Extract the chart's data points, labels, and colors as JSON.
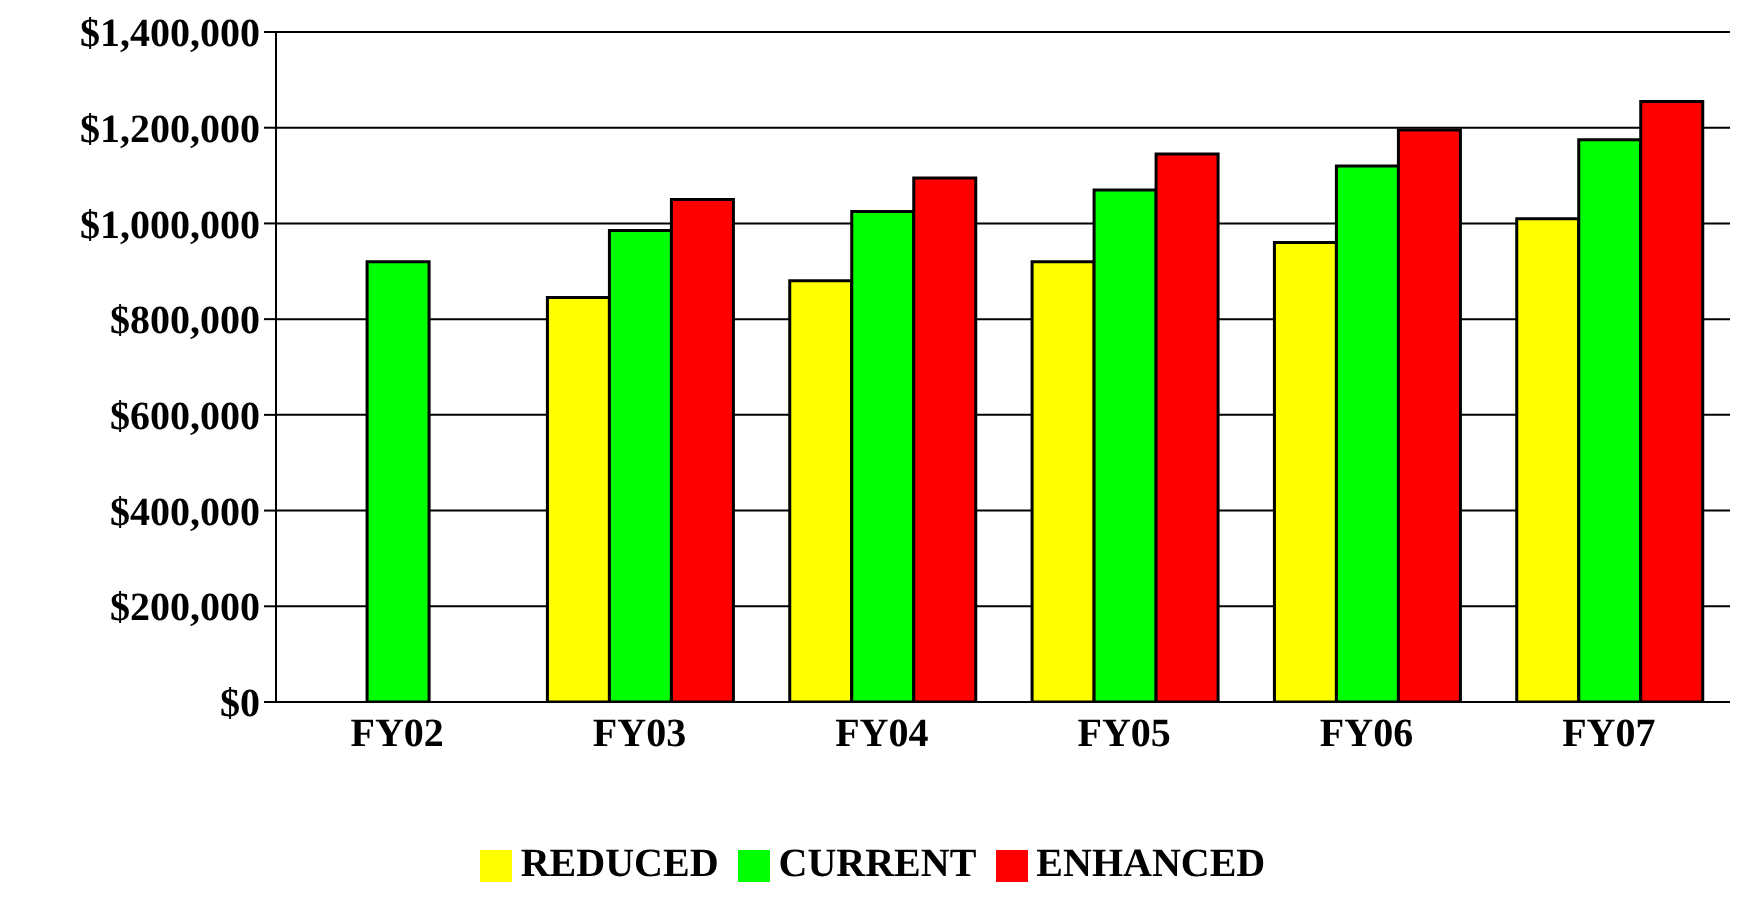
{
  "chart_data": {
    "type": "bar",
    "categories": [
      "FY02",
      "FY03",
      "FY04",
      "FY05",
      "FY06",
      "FY07"
    ],
    "series": [
      {
        "name": "REDUCED",
        "color": "#ffff00",
        "values": [
          null,
          845000,
          880000,
          920000,
          960000,
          1010000
        ]
      },
      {
        "name": "CURRENT",
        "color": "#00ff00",
        "values": [
          920000,
          985000,
          1025000,
          1070000,
          1120000,
          1175000
        ]
      },
      {
        "name": "ENHANCED",
        "color": "#ff0000",
        "values": [
          null,
          1050000,
          1095000,
          1145000,
          1195000,
          1255000
        ]
      }
    ],
    "ylim": [
      0,
      1400000
    ],
    "yticks": [
      {
        "value": 0,
        "label": "$0"
      },
      {
        "value": 200000,
        "label": "$200,000"
      },
      {
        "value": 400000,
        "label": "$400,000"
      },
      {
        "value": 600000,
        "label": "$600,000"
      },
      {
        "value": 800000,
        "label": "$800,000"
      },
      {
        "value": 1000000,
        "label": "$1,000,000"
      },
      {
        "value": 1200000,
        "label": "$1,200,000"
      },
      {
        "value": 1400000,
        "label": "$1,400,000"
      }
    ],
    "grid": "y",
    "legend": "bottom"
  }
}
